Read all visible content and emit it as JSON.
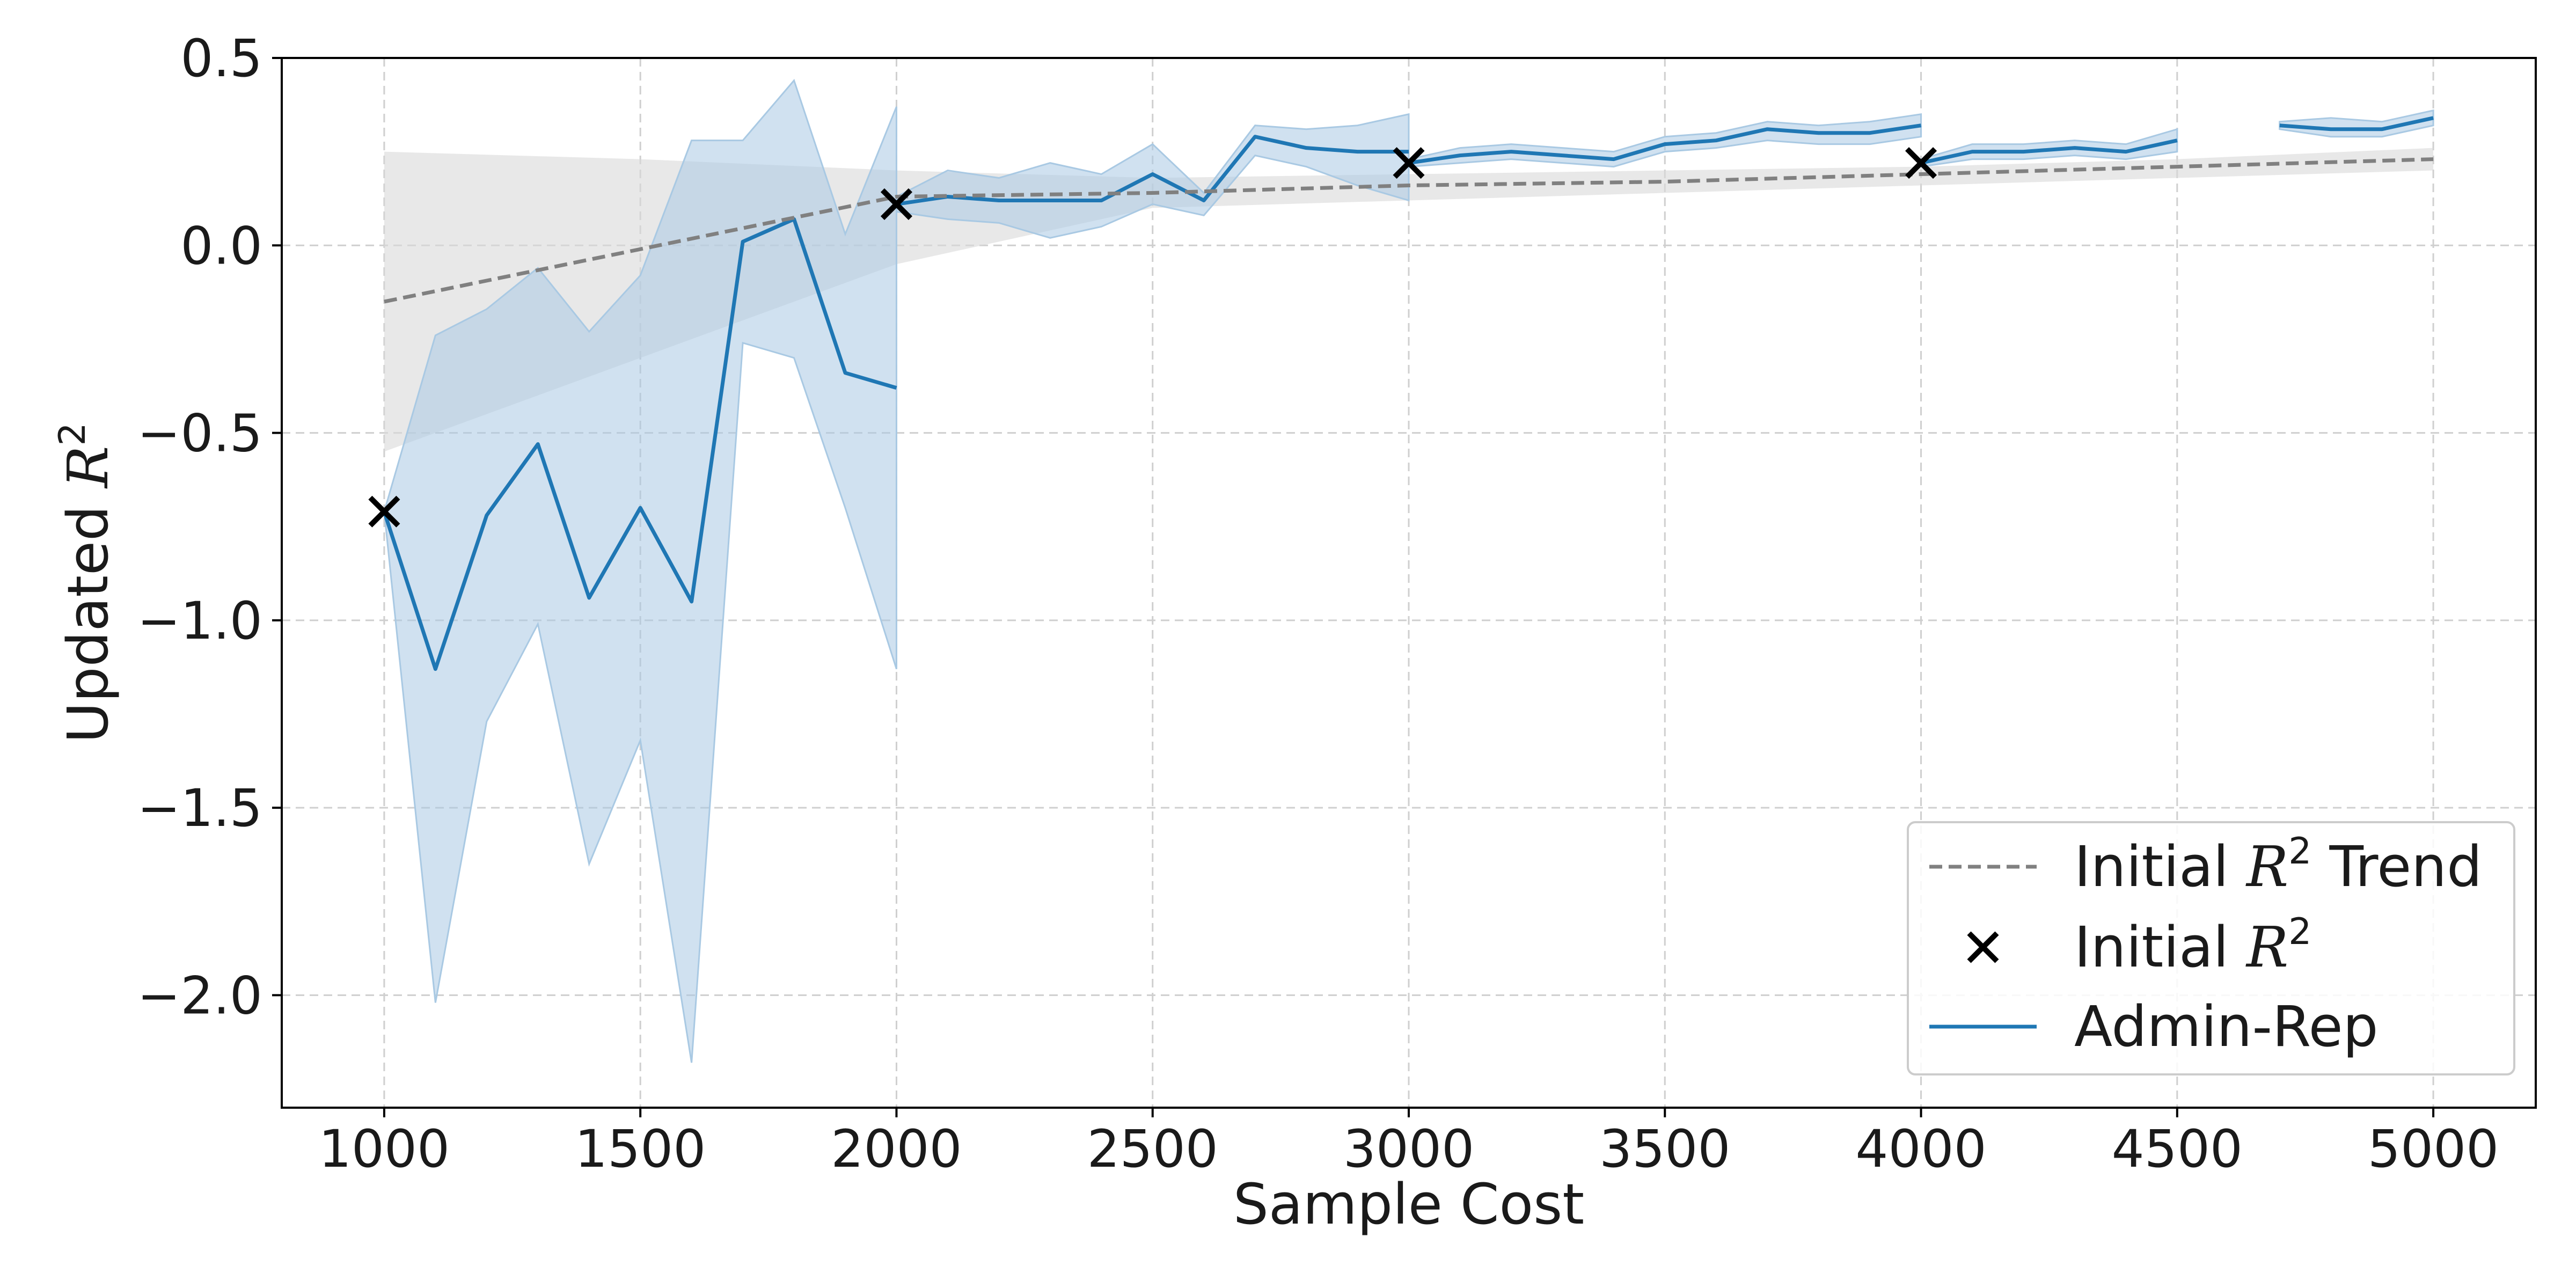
{
  "chart_data": {
    "type": "line",
    "xlabel": "Sample Cost",
    "ylabel_text": "Updated ",
    "ylabel_math": "R",
    "ylabel_sup": "2",
    "xlim": [
      800,
      5200
    ],
    "ylim": [
      -2.3,
      0.5
    ],
    "xticks": [
      1000,
      1500,
      2000,
      2500,
      3000,
      3500,
      4000,
      4500,
      5000
    ],
    "xtick_labels": [
      "1000",
      "1500",
      "2000",
      "2500",
      "3000",
      "3500",
      "4000",
      "4500",
      "5000"
    ],
    "yticks": [
      0.5,
      0.0,
      -0.5,
      -1.0,
      -1.5,
      -2.0
    ],
    "ytick_labels": [
      "0.5",
      "0.0",
      "−0.5",
      "−1.0",
      "−1.5",
      "−2.0"
    ],
    "grid": true,
    "legend_position": "bottom-right",
    "colors": {
      "admin_rep": "#1f77b4",
      "trend": "#808080",
      "initial": "#000000",
      "trend_band": "#d9d9d9",
      "admin_band": "#a9c9e3"
    },
    "trend": {
      "legend_prefix": "Initial ",
      "legend_math": "R",
      "legend_sup": "2",
      "legend_suffix": " Trend",
      "x": [
        1000,
        1500,
        2000,
        2500,
        3000,
        3500,
        4000,
        4500,
        5000
      ],
      "y": [
        -0.15,
        -0.01,
        0.13,
        0.14,
        0.16,
        0.17,
        0.19,
        0.21,
        0.23
      ],
      "band_lower": [
        -0.55,
        -0.3,
        -0.05,
        0.1,
        0.12,
        0.14,
        0.16,
        0.18,
        0.2
      ],
      "band_upper": [
        0.25,
        0.23,
        0.2,
        0.18,
        0.19,
        0.2,
        0.21,
        0.23,
        0.26
      ]
    },
    "initial_points": {
      "legend_prefix": "Initial ",
      "legend_math": "R",
      "legend_sup": "2",
      "x": [
        1000,
        2000,
        3000,
        4000
      ],
      "y": [
        -0.71,
        0.11,
        0.22,
        0.22
      ]
    },
    "admin_rep": {
      "legend_label": "Admin-Rep",
      "segments": [
        {
          "x": [
            1000,
            1100,
            1200,
            1300,
            1400,
            1500,
            1600,
            1700,
            1800,
            1900,
            2000
          ],
          "y": [
            -0.71,
            -1.13,
            -0.72,
            -0.53,
            -0.94,
            -0.7,
            -0.95,
            0.01,
            0.07,
            -0.34,
            -0.38
          ],
          "lower": [
            -0.71,
            -2.02,
            -1.27,
            -1.01,
            -1.65,
            -1.32,
            -2.18,
            -0.26,
            -0.3,
            -0.7,
            -1.13
          ],
          "upper": [
            -0.71,
            -0.24,
            -0.17,
            -0.06,
            -0.23,
            -0.08,
            0.28,
            0.28,
            0.44,
            0.03,
            0.37
          ]
        },
        {
          "x": [
            2000,
            2100,
            2200,
            2300,
            2400,
            2500,
            2600,
            2700,
            2800,
            2900,
            3000
          ],
          "y": [
            0.11,
            0.13,
            0.12,
            0.12,
            0.12,
            0.19,
            0.12,
            0.29,
            0.26,
            0.25,
            0.25
          ],
          "lower": [
            0.09,
            0.07,
            0.06,
            0.02,
            0.05,
            0.11,
            0.08,
            0.24,
            0.21,
            0.16,
            0.12
          ],
          "upper": [
            0.13,
            0.2,
            0.18,
            0.22,
            0.19,
            0.27,
            0.14,
            0.32,
            0.31,
            0.32,
            0.35
          ]
        },
        {
          "x": [
            3000,
            3100,
            3200,
            3300,
            3400,
            3500,
            3600,
            3700,
            3800,
            3900,
            4000
          ],
          "y": [
            0.22,
            0.24,
            0.25,
            0.24,
            0.23,
            0.27,
            0.28,
            0.31,
            0.3,
            0.3,
            0.32
          ],
          "lower": [
            0.21,
            0.22,
            0.23,
            0.22,
            0.21,
            0.25,
            0.26,
            0.28,
            0.27,
            0.27,
            0.29
          ],
          "upper": [
            0.23,
            0.26,
            0.27,
            0.26,
            0.25,
            0.29,
            0.3,
            0.33,
            0.32,
            0.33,
            0.35
          ]
        },
        {
          "x": [
            4000,
            4100,
            4200,
            4300,
            4400,
            4500
          ],
          "y": [
            0.22,
            0.25,
            0.25,
            0.26,
            0.25,
            0.28
          ],
          "lower": [
            0.21,
            0.23,
            0.23,
            0.24,
            0.23,
            0.25
          ],
          "upper": [
            0.23,
            0.27,
            0.27,
            0.28,
            0.27,
            0.31
          ]
        },
        {
          "x": [
            4700,
            4800,
            4900,
            5000
          ],
          "y": [
            0.32,
            0.31,
            0.31,
            0.34
          ],
          "lower": [
            0.31,
            0.29,
            0.29,
            0.32
          ],
          "upper": [
            0.33,
            0.34,
            0.33,
            0.36
          ]
        }
      ]
    }
  }
}
